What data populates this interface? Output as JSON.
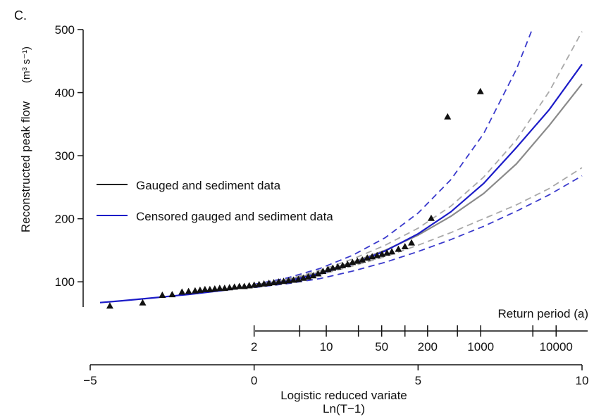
{
  "panel_label": "C.",
  "chart_data": {
    "type": "line",
    "xlabel": "Logistic reduced variate",
    "xlabel_sub": "Ln(T−1)",
    "ylabel": "Reconstructed peak flow",
    "ylabel_unit": "(m³ s⁻¹)",
    "xlim": [
      -5,
      10
    ],
    "ylim": [
      60,
      500
    ],
    "x_ticks": [
      -5,
      0,
      5,
      10
    ],
    "x_tick_labels": [
      "−5",
      "0",
      "5",
      "10"
    ],
    "y_ticks": [
      100,
      200,
      300,
      400,
      500
    ],
    "y_tick_labels": [
      "100",
      "200",
      "300",
      "400",
      "500"
    ],
    "return_period_axis": {
      "title": "Return period (a)",
      "labeled_ticks": [
        {
          "label": "2",
          "x": 0
        },
        {
          "label": "10",
          "x": 2.2
        },
        {
          "label": "50",
          "x": 3.89
        },
        {
          "label": "200",
          "x": 5.29
        },
        {
          "label": "1000",
          "x": 6.91
        },
        {
          "label": "10000",
          "x": 9.21
        }
      ],
      "minor_ticks_x": [
        1.39,
        3.18,
        4.6,
        6.2,
        8.5
      ]
    },
    "legend": {
      "position": "middle-left",
      "entries": [
        {
          "label": "Gauged and sediment data",
          "color": "#222222"
        },
        {
          "label": "Censored gauged and sediment data",
          "color": "#1c1cc8"
        }
      ]
    },
    "colors": {
      "gauged": "#8a8a8a",
      "gauged_ci": "#a9a9a9",
      "censored": "#1c1cc8",
      "censored_ci": "#3a3acc",
      "points": "#111111"
    },
    "series": [
      {
        "name": "Gauged and sediment data",
        "role": "fit",
        "style": "solid",
        "x": [
          0,
          1,
          2,
          3,
          4,
          5,
          6,
          7,
          8,
          9,
          10
        ],
        "y": [
          95,
          103,
          115,
          131,
          150,
          174,
          204,
          240,
          287,
          348,
          414
        ]
      },
      {
        "name": "Gauged and sediment data",
        "role": "upper-ci",
        "style": "dashed",
        "x": [
          0,
          1,
          2,
          3,
          4,
          5,
          6,
          7,
          8,
          9,
          10
        ],
        "y": [
          96,
          104,
          118,
          136,
          158,
          185,
          220,
          266,
          325,
          402,
          497
        ]
      },
      {
        "name": "Gauged and sediment data",
        "role": "lower-ci",
        "style": "dashed",
        "x": [
          0,
          1,
          2,
          3,
          4,
          5,
          6,
          7,
          8,
          9,
          10
        ],
        "y": [
          94,
          101,
          111,
          125,
          140,
          158,
          178,
          200,
          222,
          248,
          281
        ]
      },
      {
        "name": "Censored gauged and sediment data",
        "role": "fit",
        "style": "solid",
        "x": [
          -4.7,
          -4,
          -3,
          -2,
          -1,
          0,
          1,
          2,
          3,
          4,
          5,
          6,
          7,
          8,
          9,
          10
        ],
        "y": [
          67,
          70,
          75,
          80,
          86,
          93,
          101,
          113,
          128,
          149,
          176,
          211,
          256,
          313,
          373,
          445
        ]
      },
      {
        "name": "Censored gauged and sediment data",
        "role": "upper-ci",
        "style": "dashed",
        "x": [
          0,
          1,
          2,
          3,
          4,
          5,
          6,
          7,
          8,
          8.5
        ],
        "y": [
          96,
          106,
          121,
          142,
          170,
          209,
          262,
          335,
          437,
          503
        ]
      },
      {
        "name": "Censored gauged and sediment data",
        "role": "lower-ci",
        "style": "dashed",
        "x": [
          0,
          1,
          2,
          3,
          4,
          5,
          6,
          7,
          8,
          9,
          10
        ],
        "y": [
          91,
          97,
          105,
          117,
          131,
          148,
          167,
          188,
          212,
          238,
          268
        ]
      }
    ],
    "points": {
      "x": [
        -4.4,
        -3.4,
        -2.8,
        -2.5,
        -2.2,
        -2.0,
        -1.8,
        -1.65,
        -1.5,
        -1.35,
        -1.2,
        -1.05,
        -0.9,
        -0.75,
        -0.6,
        -0.45,
        -0.3,
        -0.15,
        0.0,
        0.15,
        0.3,
        0.45,
        0.6,
        0.75,
        0.9,
        1.05,
        1.2,
        1.35,
        1.5,
        1.65,
        1.8,
        1.95,
        2.1,
        2.25,
        2.4,
        2.55,
        2.7,
        2.85,
        3.0,
        3.15,
        3.3,
        3.45,
        3.6,
        3.75,
        3.9,
        4.05,
        4.2,
        4.4,
        4.6,
        4.8,
        5.4,
        5.9,
        6.9
      ],
      "y": [
        62,
        67,
        79,
        80,
        84,
        85,
        86,
        87,
        88,
        88,
        89,
        90,
        90,
        91,
        92,
        93,
        93,
        94,
        95,
        96,
        97,
        98,
        99,
        100,
        101,
        102,
        103,
        104,
        106,
        108,
        110,
        113,
        117,
        120,
        122,
        124,
        126,
        128,
        131,
        133,
        135,
        138,
        140,
        142,
        144,
        146,
        148,
        152,
        156,
        162,
        201,
        362,
        402
      ]
    }
  }
}
